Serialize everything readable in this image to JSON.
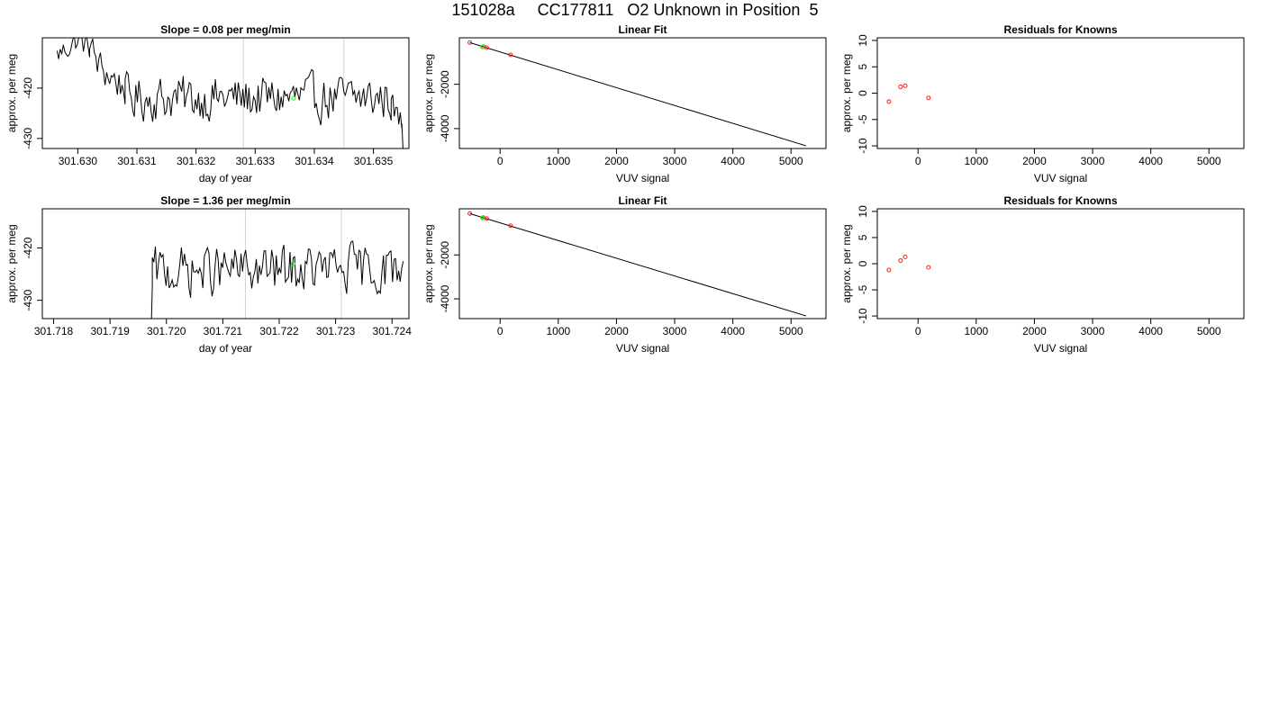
{
  "figure": {
    "title": "151028a     CC177811   O2 Unknown in Position  5"
  },
  "colors": {
    "line": "#000000",
    "vline": "#d3d3d3",
    "known_point": "#ff0000",
    "unknown_point": "#00ff00"
  },
  "chart_data": [
    {
      "id": "row1-timeseries",
      "type": "line",
      "title": "Slope =  0.08  per meg/min",
      "xlabel": "day of year",
      "ylabel": "approx. per meg",
      "xlim": [
        301.6294,
        301.6356
      ],
      "ylim": [
        -432.0,
        -410.0
      ],
      "xticks": [
        "301.630",
        "301.631",
        "301.632",
        "301.633",
        "301.634",
        "301.635"
      ],
      "yticks": [
        "-420",
        "-430"
      ],
      "vlines": [
        301.6328,
        301.6345
      ],
      "series": [
        {
          "segments": [
            {
              "x0": 301.62965,
              "x1": 301.6302,
              "start": -413.5,
              "noise": 1.2,
              "trend": [
                [
                  0,
                  -413.5
                ],
                [
                  0.6,
                  -410.5
                ],
                [
                  1,
                  -412
                ]
              ]
            },
            {
              "x0": 301.6302,
              "x1": 301.6308,
              "start": -412,
              "noise": 1.8,
              "trend": [
                [
                  0,
                  -412
                ],
                [
                  0.3,
                  -416
                ],
                [
                  1,
                  -420
                ]
              ]
            },
            {
              "x0": 301.6308,
              "x1": 301.6353,
              "start": -421,
              "noise": 2.2,
              "trend": [
                [
                  0,
                  -422
                ],
                [
                  1,
                  -422
                ]
              ]
            },
            {
              "x0": 301.6353,
              "x1": 301.63548,
              "start": -424,
              "noise": 1.5,
              "trend": [
                [
                  0,
                  -424
                ],
                [
                  1,
                  -427
                ]
              ]
            },
            {
              "x0": 301.63548,
              "x1": 301.6355,
              "start": -427,
              "noise": 0,
              "trend": [
                [
                  0,
                  -427
                ],
                [
                  1,
                  -432
                ]
              ]
            }
          ]
        }
      ],
      "highlight": [
        {
          "x": 301.63365,
          "y": -422.0,
          "label": "unknown"
        }
      ]
    },
    {
      "id": "row1-linearfit",
      "type": "scatter",
      "title": "Linear Fit",
      "xlabel": "VUV signal",
      "ylabel": "approx. per meg",
      "xlim": [
        -700,
        5600
      ],
      "ylim": [
        -4900,
        100
      ],
      "xticks": [
        0,
        1000,
        2000,
        3000,
        4000,
        5000
      ],
      "yticks": [
        -2000,
        -4000
      ],
      "fit_line": {
        "x": [
          -520,
          5260
        ],
        "y": [
          -120,
          -4780
        ]
      },
      "knowns": [
        {
          "x": -520,
          "y": -115
        },
        {
          "x": -290,
          "y": -300
        },
        {
          "x": -230,
          "y": -345
        },
        {
          "x": 180,
          "y": -670
        }
      ],
      "unknowns": [
        {
          "x": -300,
          "y": -310
        }
      ]
    },
    {
      "id": "row1-residuals",
      "type": "scatter",
      "title": "Residuals for Knowns",
      "xlabel": "VUV signal",
      "ylabel": "approx. per meg",
      "xlim": [
        -700,
        5600
      ],
      "ylim": [
        -10.5,
        10.5
      ],
      "xticks": [
        0,
        1000,
        2000,
        3000,
        4000,
        5000
      ],
      "yticks": [
        10,
        5,
        0,
        -5,
        -10
      ],
      "points": [
        {
          "x": -500,
          "y": -1.6
        },
        {
          "x": -300,
          "y": 1.2
        },
        {
          "x": -220,
          "y": 1.4
        },
        {
          "x": 180,
          "y": -0.9
        }
      ]
    },
    {
      "id": "row2-timeseries",
      "type": "line",
      "title": "Slope =  1.36  per meg/min",
      "xlabel": "day of year",
      "ylabel": "approx. per meg",
      "xlim": [
        301.7178,
        301.7243
      ],
      "ylim": [
        -433.5,
        -412.5
      ],
      "xticks": [
        "301.718",
        "301.719",
        "301.720",
        "301.721",
        "301.722",
        "301.723",
        "301.724"
      ],
      "yticks": [
        "-420",
        "-430"
      ],
      "vlines": [
        301.7214,
        301.7231
      ],
      "series": [
        {
          "segments": [
            {
              "x0": 301.71972,
              "x1": 301.71975,
              "start": -440,
              "noise": 0,
              "trend": [
                [
                  0,
                  -440
                ],
                [
                  1,
                  -427.5
                ]
              ]
            },
            {
              "x0": 301.71975,
              "x1": 301.7242,
              "start": -427,
              "noise": 2.3,
              "trend": [
                [
                  0,
                  -424.5
                ],
                [
                  1,
                  -424
                ]
              ]
            }
          ]
        }
      ],
      "highlight": [
        {
          "x": 301.72225,
          "y": -423.0,
          "label": "unknown"
        }
      ]
    },
    {
      "id": "row2-linearfit",
      "type": "scatter",
      "title": "Linear Fit",
      "xlabel": "VUV signal",
      "ylabel": "approx. per meg",
      "xlim": [
        -700,
        5600
      ],
      "ylim": [
        -4900,
        100
      ],
      "xticks": [
        0,
        1000,
        2000,
        3000,
        4000,
        5000
      ],
      "yticks": [
        -2000,
        -4000
      ],
      "fit_line": {
        "x": [
          -520,
          5260
        ],
        "y": [
          -120,
          -4780
        ]
      },
      "knowns": [
        {
          "x": -520,
          "y": -115
        },
        {
          "x": -290,
          "y": -300
        },
        {
          "x": -230,
          "y": -345
        },
        {
          "x": 180,
          "y": -670
        }
      ],
      "unknowns": [
        {
          "x": -300,
          "y": -310
        }
      ]
    },
    {
      "id": "row2-residuals",
      "type": "scatter",
      "title": "Residuals for Knowns",
      "xlabel": "VUV signal",
      "ylabel": "approx. per meg",
      "xlim": [
        -700,
        5600
      ],
      "ylim": [
        -10.5,
        10.5
      ],
      "xticks": [
        0,
        1000,
        2000,
        3000,
        4000,
        5000
      ],
      "yticks": [
        10,
        5,
        0,
        -5,
        -10
      ],
      "points": [
        {
          "x": -500,
          "y": -1.2
        },
        {
          "x": -300,
          "y": 0.6
        },
        {
          "x": -220,
          "y": 1.3
        },
        {
          "x": 180,
          "y": -0.7
        }
      ]
    }
  ]
}
